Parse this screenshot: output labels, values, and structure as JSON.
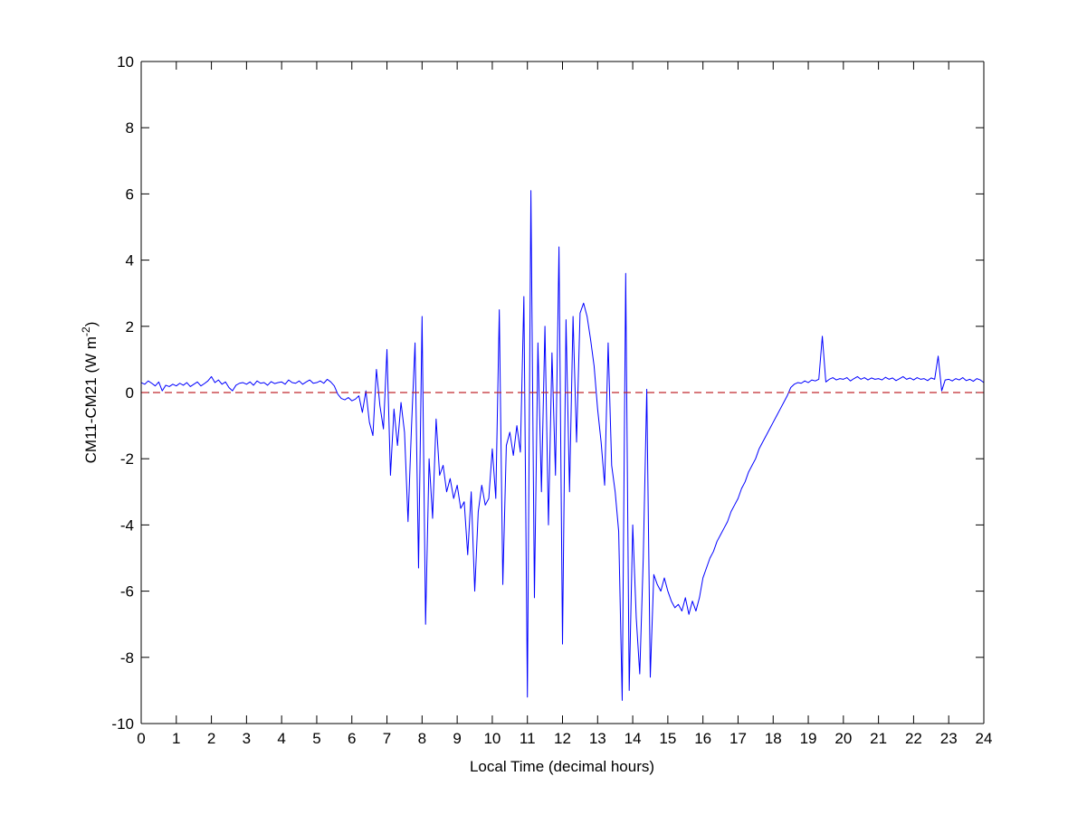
{
  "chart_data": {
    "type": "line",
    "xlabel": "Local Time (decimal hours)",
    "ylabel": {
      "text": "CM11-CM21 (W m",
      "superscript": "-2",
      "suffix": ")"
    },
    "color": "#0000ff",
    "reference_line": {
      "value": 0,
      "color": "#c0282d",
      "dashed": true
    },
    "xlim": [
      0,
      24
    ],
    "ylim": [
      -10,
      10
    ],
    "xticks": [
      0,
      1,
      2,
      3,
      4,
      5,
      6,
      7,
      8,
      9,
      10,
      11,
      12,
      13,
      14,
      15,
      16,
      17,
      18,
      19,
      20,
      21,
      22,
      23,
      24
    ],
    "yticks": [
      -10,
      -8,
      -6,
      -4,
      -2,
      0,
      2,
      4,
      6,
      8,
      10
    ],
    "grid": false,
    "box": true,
    "x": [
      0,
      0.1,
      0.2,
      0.3,
      0.4,
      0.5,
      0.6,
      0.7,
      0.8,
      0.9,
      1,
      1.1,
      1.2,
      1.3,
      1.4,
      1.5,
      1.6,
      1.7,
      1.8,
      1.9,
      2,
      2.1,
      2.2,
      2.3,
      2.4,
      2.5,
      2.6,
      2.7,
      2.8,
      2.9,
      3,
      3.1,
      3.2,
      3.3,
      3.4,
      3.5,
      3.6,
      3.7,
      3.8,
      3.9,
      4,
      4.1,
      4.2,
      4.3,
      4.4,
      4.5,
      4.6,
      4.7,
      4.8,
      4.9,
      5,
      5.1,
      5.2,
      5.3,
      5.4,
      5.5,
      5.6,
      5.7,
      5.8,
      5.9,
      6,
      6.1,
      6.2,
      6.3,
      6.4,
      6.5,
      6.6,
      6.7,
      6.8,
      6.9,
      7,
      7.1,
      7.2,
      7.3,
      7.4,
      7.5,
      7.6,
      7.7,
      7.8,
      7.9,
      8,
      8.1,
      8.2,
      8.3,
      8.4,
      8.5,
      8.6,
      8.7,
      8.8,
      8.9,
      9,
      9.1,
      9.2,
      9.3,
      9.4,
      9.5,
      9.6,
      9.7,
      9.8,
      9.9,
      10,
      10.1,
      10.2,
      10.3,
      10.4,
      10.5,
      10.6,
      10.7,
      10.8,
      10.9,
      11,
      11.1,
      11.2,
      11.3,
      11.4,
      11.5,
      11.6,
      11.7,
      11.8,
      11.9,
      12,
      12.1,
      12.2,
      12.3,
      12.4,
      12.5,
      12.6,
      12.7,
      12.8,
      12.9,
      13,
      13.1,
      13.2,
      13.3,
      13.4,
      13.5,
      13.6,
      13.7,
      13.8,
      13.9,
      14,
      14.1,
      14.2,
      14.3,
      14.4,
      14.5,
      14.6,
      14.7,
      14.8,
      14.9,
      15,
      15.1,
      15.2,
      15.3,
      15.4,
      15.5,
      15.6,
      15.7,
      15.8,
      15.9,
      16,
      16.1,
      16.2,
      16.3,
      16.4,
      16.5,
      16.6,
      16.7,
      16.8,
      16.9,
      17,
      17.1,
      17.2,
      17.3,
      17.4,
      17.5,
      17.6,
      17.7,
      17.8,
      17.9,
      18,
      18.1,
      18.2,
      18.3,
      18.4,
      18.5,
      18.6,
      18.7,
      18.8,
      18.9,
      19,
      19.1,
      19.2,
      19.3,
      19.4,
      19.5,
      19.6,
      19.7,
      19.8,
      19.9,
      20,
      20.1,
      20.2,
      20.3,
      20.4,
      20.5,
      20.6,
      20.7,
      20.8,
      20.9,
      21,
      21.1,
      21.2,
      21.3,
      21.4,
      21.5,
      21.6,
      21.7,
      21.8,
      21.9,
      22,
      22.1,
      22.2,
      22.3,
      22.4,
      22.5,
      22.6,
      22.7,
      22.8,
      22.9,
      23,
      23.1,
      23.2,
      23.3,
      23.4,
      23.5,
      23.6,
      23.7,
      23.8,
      23.9,
      24
    ],
    "values": [
      0.3,
      0.25,
      0.35,
      0.28,
      0.2,
      0.32,
      0.05,
      0.22,
      0.18,
      0.25,
      0.2,
      0.28,
      0.22,
      0.3,
      0.18,
      0.25,
      0.32,
      0.2,
      0.27,
      0.35,
      0.48,
      0.3,
      0.38,
      0.25,
      0.32,
      0.15,
      0.05,
      0.22,
      0.28,
      0.3,
      0.25,
      0.32,
      0.22,
      0.35,
      0.28,
      0.3,
      0.22,
      0.33,
      0.27,
      0.3,
      0.32,
      0.25,
      0.38,
      0.3,
      0.28,
      0.35,
      0.25,
      0.32,
      0.38,
      0.28,
      0.3,
      0.35,
      0.28,
      0.4,
      0.32,
      0.2,
      -0.05,
      -0.18,
      -0.22,
      -0.15,
      -0.25,
      -0.2,
      -0.1,
      -0.6,
      0.05,
      -0.9,
      -1.3,
      0.7,
      -0.4,
      -1.1,
      1.3,
      -2.5,
      -0.5,
      -1.6,
      -0.3,
      -1.2,
      -3.9,
      -1.0,
      1.5,
      -5.3,
      2.3,
      -7.0,
      -2.0,
      -3.8,
      -0.8,
      -2.5,
      -2.2,
      -3.0,
      -2.6,
      -3.2,
      -2.8,
      -3.5,
      -3.3,
      -4.9,
      -3.0,
      -6.0,
      -3.6,
      -2.8,
      -3.4,
      -3.2,
      -1.7,
      -3.2,
      2.5,
      -5.8,
      -1.6,
      -1.2,
      -1.9,
      -1.0,
      -1.8,
      2.9,
      -9.2,
      6.1,
      -6.2,
      1.5,
      -3.0,
      2.0,
      -4.0,
      1.2,
      -2.5,
      4.4,
      -7.6,
      2.2,
      -3.0,
      2.3,
      -1.5,
      2.4,
      2.7,
      2.3,
      1.6,
      0.8,
      -0.5,
      -1.5,
      -2.8,
      1.5,
      -2.2,
      -3.0,
      -4.2,
      -9.3,
      3.6,
      -9.0,
      -4.0,
      -6.8,
      -8.5,
      -5.0,
      0.1,
      -8.6,
      -5.5,
      -5.8,
      -6.0,
      -5.6,
      -6.0,
      -6.3,
      -6.5,
      -6.4,
      -6.6,
      -6.2,
      -6.7,
      -6.3,
      -6.6,
      -6.2,
      -5.6,
      -5.3,
      -5.0,
      -4.8,
      -4.5,
      -4.3,
      -4.1,
      -3.9,
      -3.6,
      -3.4,
      -3.2,
      -2.9,
      -2.7,
      -2.4,
      -2.2,
      -2.0,
      -1.7,
      -1.5,
      -1.3,
      -1.1,
      -0.9,
      -0.7,
      -0.5,
      -0.3,
      -0.1,
      0.15,
      0.25,
      0.3,
      0.28,
      0.35,
      0.3,
      0.38,
      0.35,
      0.4,
      1.7,
      0.32,
      0.4,
      0.45,
      0.38,
      0.42,
      0.4,
      0.45,
      0.35,
      0.42,
      0.48,
      0.4,
      0.45,
      0.38,
      0.44,
      0.4,
      0.42,
      0.38,
      0.46,
      0.4,
      0.44,
      0.36,
      0.42,
      0.48,
      0.4,
      0.44,
      0.38,
      0.45,
      0.4,
      0.42,
      0.36,
      0.44,
      0.4,
      1.1,
      0.05,
      0.38,
      0.4,
      0.35,
      0.42,
      0.38,
      0.45,
      0.36,
      0.4,
      0.34,
      0.42,
      0.38,
      0.3
    ]
  }
}
